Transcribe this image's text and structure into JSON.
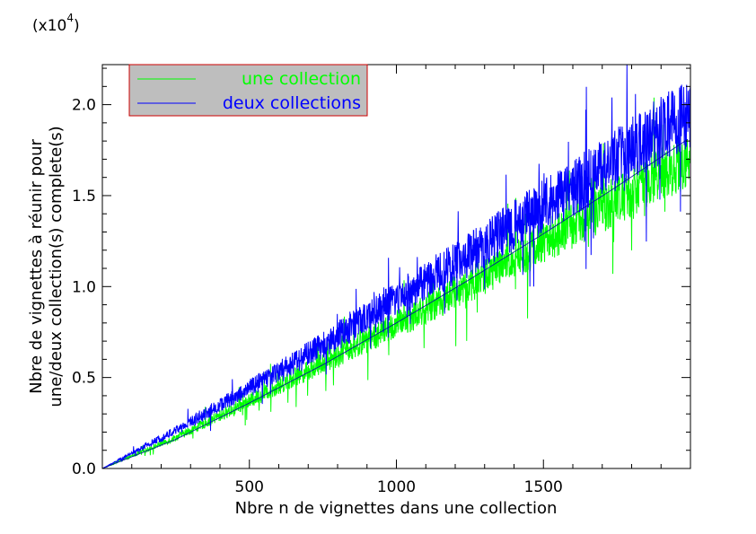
{
  "chart_data": {
    "type": "line",
    "title": "",
    "multiplier_label": "(x10",
    "multiplier_exponent": "4",
    "multiplier_close": ")",
    "xlabel": "Nbre n de vignettes dans une collection",
    "ylabel_line1": "Nbre de vignettes à réunir pour",
    "ylabel_line2": "une/deux collection(s) complete(s)",
    "xlim": [
      0,
      2000
    ],
    "ylim": [
      0,
      2.22
    ],
    "x_ticks": [
      500,
      1000,
      1500
    ],
    "x_tick_labels": [
      "500",
      "1000",
      "1500"
    ],
    "y_ticks": [
      0.0,
      0.5,
      1.0,
      1.5,
      2.0
    ],
    "y_tick_labels": [
      "0.0",
      "0.5",
      "1.0",
      "1.5",
      "2.0"
    ],
    "grid": false,
    "legend_position": "top-left",
    "legend_background": "#bebebe",
    "legend_border": "#cc0000",
    "series": [
      {
        "name": "une collection",
        "color": "#00ff00",
        "model": "noisy",
        "x": [
          0,
          250,
          500,
          750,
          1000,
          1250,
          1500,
          1750,
          2000
        ],
        "trend": [
          0,
          0.17,
          0.37,
          0.58,
          0.79,
          1.01,
          1.24,
          1.48,
          1.71
        ],
        "noise_amplitude": [
          0,
          0.02,
          0.04,
          0.06,
          0.08,
          0.1,
          0.12,
          0.14,
          0.16
        ]
      },
      {
        "name": "deux collections",
        "color": "#0000ff",
        "model": "noisy",
        "x": [
          0,
          250,
          500,
          750,
          1000,
          1250,
          1500,
          1750,
          2000
        ],
        "trend": [
          0,
          0.21,
          0.44,
          0.68,
          0.93,
          1.18,
          1.44,
          1.7,
          1.96
        ],
        "noise_amplitude": [
          0,
          0.025,
          0.05,
          0.075,
          0.1,
          0.125,
          0.15,
          0.175,
          0.2
        ]
      },
      {
        "name": "",
        "color": "#0000aa",
        "model": "smooth",
        "x": [
          0,
          250,
          500,
          750,
          1000,
          1250,
          1500,
          1750,
          2000
        ],
        "trend": [
          0,
          0.16,
          0.36,
          0.57,
          0.8,
          1.04,
          1.29,
          1.55,
          1.82
        ]
      }
    ]
  }
}
